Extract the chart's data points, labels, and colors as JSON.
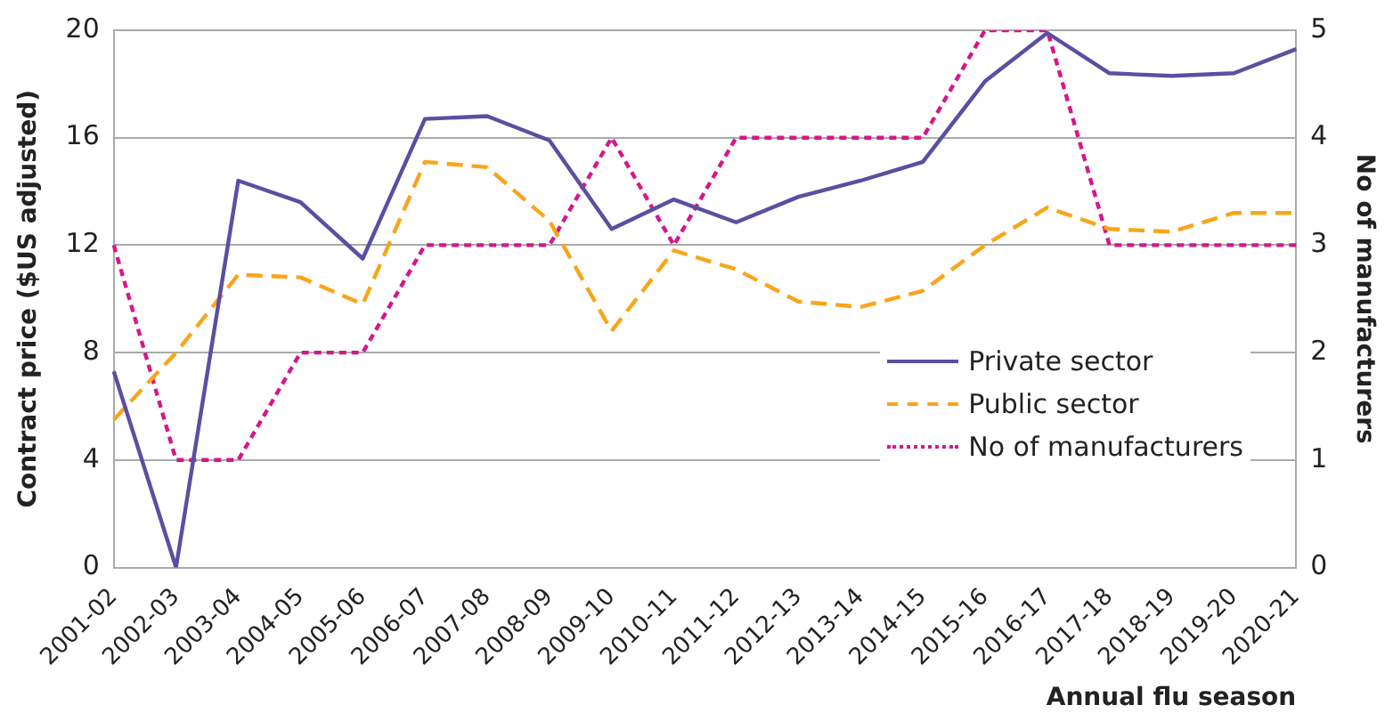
{
  "chart_data": {
    "type": "line",
    "xlabel": "Annual flu season",
    "ylabel": "Contract price ($US adjusted)",
    "y2label": "No of manufacturers",
    "categories": [
      "2001-02",
      "2002-03",
      "2003-04",
      "2004-05",
      "2005-06",
      "2006-07",
      "2007-08",
      "2008-09",
      "2009-10",
      "2010-11",
      "2011-12",
      "2012-13",
      "2013-14",
      "2014-15",
      "2015-16",
      "2016-17",
      "2017-18",
      "2018-19",
      "2019-20",
      "2020-21"
    ],
    "series": [
      {
        "name": "Private sector",
        "color": "#5b4ea3",
        "line_style": "solid",
        "values": [
          7.3,
          0,
          14.4,
          13.6,
          11.5,
          16.7,
          16.8,
          15.9,
          12.6,
          13.7,
          12.85,
          13.8,
          14.4,
          15.1,
          18.1,
          19.9,
          18.4,
          18.3,
          18.4,
          19.3
        ]
      },
      {
        "name": "Public sector",
        "color": "#f9a51a",
        "line_style": "dashed",
        "values": [
          5.5,
          8.0,
          10.9,
          10.8,
          9.8,
          15.1,
          14.9,
          12.9,
          8.8,
          11.8,
          11.1,
          9.9,
          9.7,
          10.3,
          12.0,
          13.4,
          12.6,
          12.5,
          13.2,
          13.2
        ]
      },
      {
        "name": "No of manufacturers",
        "color": "#d6168b",
        "line_style": "dotted",
        "axis": "y2",
        "values": [
          3,
          1,
          1,
          2,
          2,
          3,
          3,
          3,
          4,
          3,
          4,
          4,
          4,
          4,
          5,
          5,
          3,
          3,
          3,
          3
        ]
      }
    ],
    "ylim": [
      0,
      20
    ],
    "yticks": [
      0,
      4,
      8,
      12,
      16,
      20
    ],
    "y2lim": [
      0,
      5
    ],
    "y2ticks": [
      0,
      1,
      2,
      3,
      4,
      5
    ],
    "grid": "y",
    "legend": "bottom right",
    "marker": "none"
  }
}
